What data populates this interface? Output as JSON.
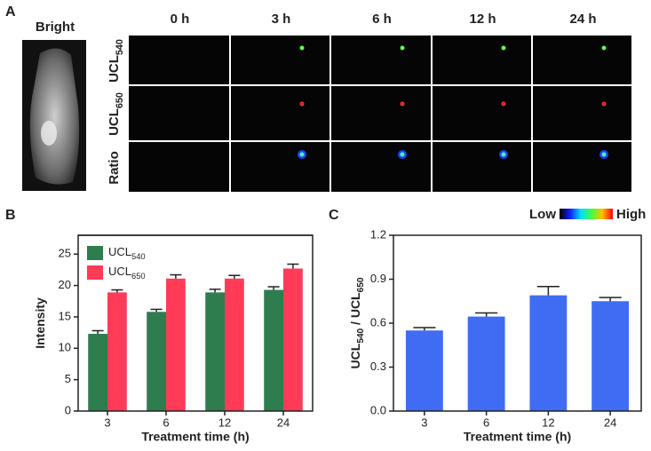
{
  "panel_a": {
    "panel": "A",
    "bright": "Bright",
    "columns": [
      "0 h",
      "3 h",
      "6 h",
      "12 h",
      "24 h"
    ],
    "rows": [
      [
        "UCL",
        "540"
      ],
      [
        "UCL",
        "650"
      ],
      [
        "Ratio"
      ]
    ],
    "colorbar_low": "Low",
    "colorbar_high": "High"
  },
  "chart_data": [
    {
      "type": "bar",
      "panel": "B",
      "categories": [
        "3",
        "6",
        "12",
        "24"
      ],
      "xlabel": "Treatment time (h)",
      "ylabel_parts": [
        "Intensity"
      ],
      "ylim": [
        0,
        28
      ],
      "yticks": [
        0,
        5,
        10,
        15,
        20,
        25
      ],
      "legend": "top-left",
      "series": [
        {
          "name": "UCL",
          "name_sub": "540",
          "color": "#2e7d4f",
          "values": [
            12.3,
            15.8,
            18.9,
            19.3
          ],
          "errors": [
            0.5,
            0.4,
            0.5,
            0.5
          ]
        },
        {
          "name": "UCL",
          "name_sub": "650",
          "color": "#ff3b57",
          "values": [
            18.9,
            21.1,
            21.1,
            22.7
          ],
          "errors": [
            0.4,
            0.6,
            0.5,
            0.7
          ]
        }
      ]
    },
    {
      "type": "bar",
      "panel": "C",
      "categories": [
        "3",
        "6",
        "12",
        "24"
      ],
      "xlabel": "Treatment time (h)",
      "ylabel_parts": [
        "UCL",
        "540",
        " / UCL",
        "650"
      ],
      "ylim": [
        0,
        1.2
      ],
      "yticks": [
        {
          "value": 0,
          "label": "0.0"
        },
        0.3,
        0.6,
        0.9,
        1.2
      ],
      "series": [
        {
          "color": "#3f6cf2",
          "values": [
            0.55,
            0.645,
            0.79,
            0.75
          ],
          "errors": [
            0.02,
            0.025,
            0.06,
            0.025
          ]
        }
      ]
    }
  ]
}
